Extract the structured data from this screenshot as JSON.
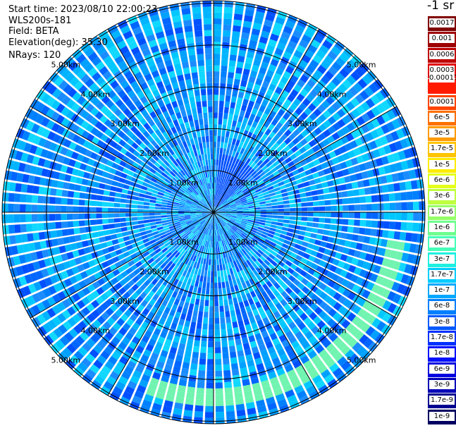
{
  "header": {
    "start_time": "Start time: 2023/08/10 22:00:23",
    "instrument": "WLS200s-181",
    "field": "Field: BETA",
    "elevation": "Elevation(deg): 35.30",
    "nrays": "NRays: 120"
  },
  "colorbar": {
    "units": "-1 sr",
    "labels": [
      "0.0017",
      "0.001",
      "0.0006",
      "0.0003",
      "0.00017",
      "0.0001",
      "6e-5",
      "3e-5",
      "1.7e-5",
      "1e-5",
      "6e-6",
      "3e-6",
      "1.7e-6",
      "1e-6",
      "6e-7",
      "3e-7",
      "1.7e-7",
      "1e-7",
      "6e-8",
      "3e-8",
      "1.7e-8",
      "1e-8",
      "6e-9",
      "3e-9",
      "1.7e-9",
      "1e-9"
    ],
    "colors": [
      "#800000",
      "#9e0000",
      "#bd0000",
      "#e00000",
      "#ff1a00",
      "#ff4500",
      "#ff7000",
      "#ff9a00",
      "#ffc400",
      "#ffec00",
      "#e5ff1a",
      "#bfff40",
      "#96ff69",
      "#6fff90",
      "#46ffb9",
      "#20f0e0",
      "#00ccff",
      "#00a8ff",
      "#0080ff",
      "#0058ff",
      "#0030ff",
      "#0010ff",
      "#0000e0",
      "#0000b8",
      "#000090",
      "#000060"
    ]
  },
  "chart_data": {
    "type": "heatmap",
    "projection": "polar-ppi",
    "field": "BETA",
    "units": "-1 sr",
    "elevation_deg": 35.3,
    "nrays": 120,
    "range_rings_km": [
      1.0,
      2.0,
      3.0,
      4.0,
      5.0
    ],
    "range_ring_labels": [
      "1.00km",
      "2.00km",
      "3.00km",
      "4.00km",
      "5.00km"
    ],
    "max_range_km": 5.0,
    "background_level": "3e-8",
    "features": [
      {
        "description_level": "3e-6",
        "azimuth_range_deg": [
          100,
          200
        ],
        "range_km": 4.4
      },
      {
        "description_level": "1.7e-8",
        "azimuth_range_deg": [
          5,
          45
        ],
        "range_km": 1.4
      }
    ]
  }
}
